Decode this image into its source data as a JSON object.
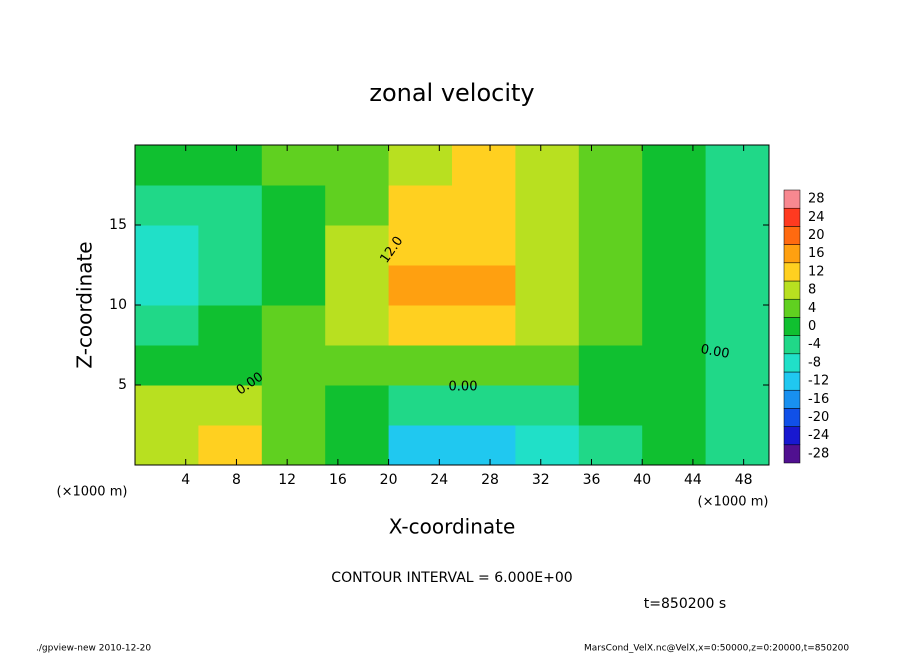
{
  "chart_data": {
    "type": "heatmap",
    "title": "zonal velocity",
    "x_label": "X-coordinate",
    "y_label": "Z-coordinate",
    "x_unit": "(×1000 m)",
    "y_unit": "(×1000 m)",
    "xlim": [
      0,
      50
    ],
    "xticks": [
      4,
      8,
      12,
      16,
      20,
      24,
      28,
      32,
      36,
      40,
      44,
      48
    ],
    "ylim": [
      0,
      20
    ],
    "yticks": [
      5,
      10,
      15
    ],
    "x": [
      2.5,
      7.5,
      12.5,
      17.5,
      22.5,
      27.5,
      32.5,
      37.5,
      42.5,
      47.5
    ],
    "y": [
      1.25,
      3.75,
      6.25,
      8.75,
      11.25,
      13.75,
      16.25,
      18.75
    ],
    "z": [
      [
        6,
        12,
        4,
        0,
        -14,
        -14,
        -8,
        -4,
        -2,
        -4
      ],
      [
        6,
        6,
        2,
        -2,
        -6,
        -6,
        -4,
        -2,
        -2,
        -4
      ],
      [
        0,
        -2,
        2,
        4,
        2,
        2,
        2,
        0,
        -2,
        -4
      ],
      [
        -4,
        -2,
        4,
        6,
        10,
        10,
        6,
        2,
        -2,
        -6
      ],
      [
        -10,
        -6,
        0,
        6,
        14,
        16,
        8,
        2,
        -2,
        -6
      ],
      [
        -10,
        -6,
        -2,
        6,
        12,
        12,
        8,
        4,
        -2,
        -6
      ],
      [
        -6,
        -4,
        0,
        4,
        10,
        10,
        8,
        4,
        -2,
        -6
      ],
      [
        -2,
        0,
        2,
        4,
        8,
        12,
        6,
        4,
        0,
        -4
      ]
    ],
    "colorbar": {
      "ticks": [
        -28,
        -24,
        -20,
        -16,
        -12,
        -8,
        -4,
        0,
        4,
        8,
        12,
        16,
        20,
        24,
        28
      ],
      "colors": [
        "#501090",
        "#1818d0",
        "#1050e8",
        "#1890f0",
        "#20c8f0",
        "#20e0c8",
        "#20d888",
        "#10c030",
        "#60d020",
        "#b8e020",
        "#ffd020",
        "#ffa010",
        "#ff6a10",
        "#ff3a20",
        "#f88890"
      ]
    },
    "contour_labels": [
      "12.0",
      "0.00",
      "0.00",
      "0.00"
    ],
    "annotations": {
      "interval": "CONTOUR INTERVAL = 6.000E+00",
      "time": "t=850200 s"
    },
    "footer": {
      "left": "./gpview-new  2010-12-20",
      "right": "MarsCond_VelX.nc@VelX,x=0:50000,z=0:20000,t=850200"
    }
  }
}
